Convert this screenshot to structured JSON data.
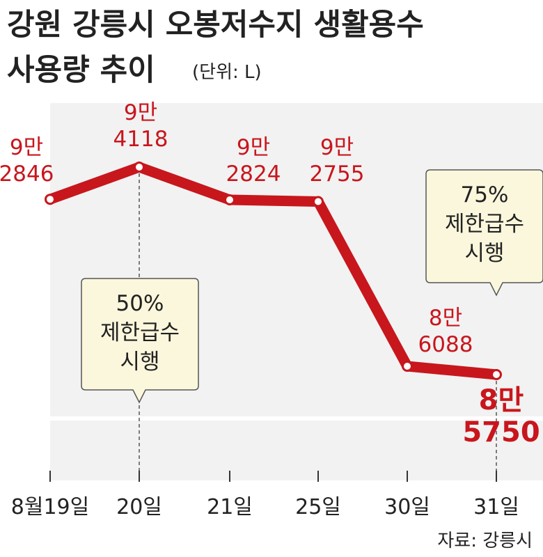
{
  "title_line1": "강원 강릉시 오봉저수지 생활용수",
  "title_line2": "사용량 추이",
  "unit": "(단위: L)",
  "source": "자료: 강릉시",
  "chart_data": {
    "type": "line",
    "title": "강원 강릉시 오봉저수지 생활용수 사용량 추이",
    "unit": "L",
    "categories": [
      "8월19일",
      "20일",
      "21일",
      "25일",
      "30일",
      "31일"
    ],
    "values": [
      92846,
      94118,
      92824,
      92755,
      86088,
      85750
    ],
    "value_labels": [
      [
        "9만",
        "2846"
      ],
      [
        "9만",
        "4118"
      ],
      [
        "9만",
        "2824"
      ],
      [
        "9만",
        "2755"
      ],
      [
        "8만",
        "6088"
      ],
      [
        "8만",
        "5750"
      ]
    ],
    "annotations": [
      {
        "category_index": 1,
        "lines": [
          "50%",
          "제한급수",
          "시행"
        ]
      },
      {
        "category_index": 5,
        "lines": [
          "75%",
          "제한급수",
          "시행"
        ]
      }
    ],
    "colors": {
      "line": "#c8161d",
      "area": "#f2f2f2",
      "callout_fill": "#fbf7dc",
      "callout_border": "#555555"
    }
  }
}
